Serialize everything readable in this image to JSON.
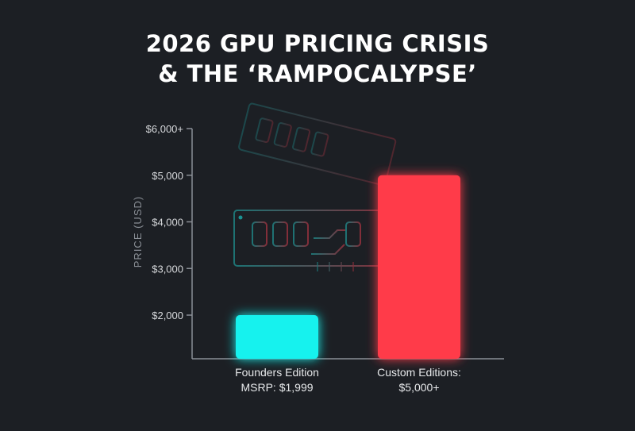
{
  "title_lines": [
    "2026 GPU PRICING CRISIS",
    "& THE ‘RAMPOCALYPSE’"
  ],
  "chart_data": {
    "type": "bar",
    "categories": [
      [
        "Founders Edition",
        "MSRP: $1,999"
      ],
      [
        "Custom Editions:",
        "$5,000+"
      ]
    ],
    "values": [
      1999,
      5000
    ],
    "bar_colors": [
      "#19f2ee",
      "#ff3a4a"
    ],
    "ylabel": "PRICE (USD)",
    "ylim": [
      1000,
      6000
    ],
    "yticks": [
      2000,
      3000,
      4000,
      5000,
      6000
    ],
    "ytick_labels": [
      "$2,000",
      "$3,000",
      "$4,000",
      "$5,000",
      "$6,000+"
    ],
    "grid": false,
    "background_decoration": "ram-module-icon"
  }
}
